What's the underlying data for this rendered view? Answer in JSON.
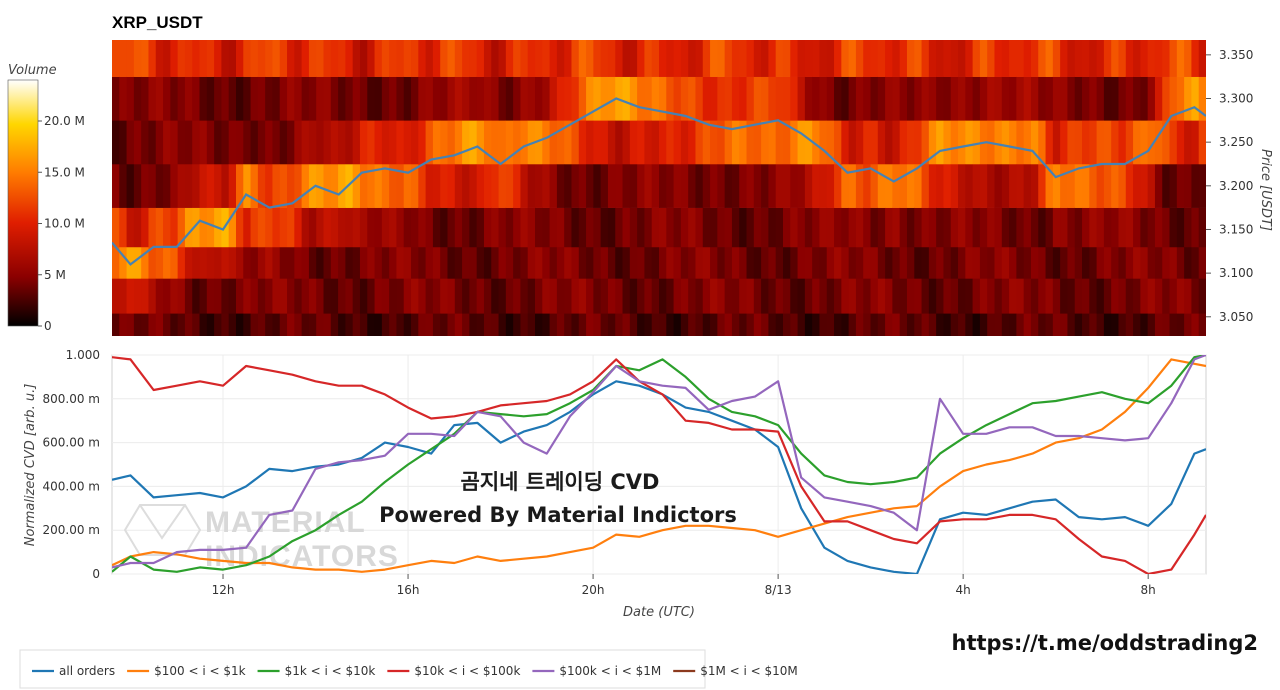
{
  "chart_data": [
    {
      "type": "heatmap",
      "title": "XRP_USDT",
      "ylabel": "Price [USDT]",
      "y_ticks": [
        "3.050",
        "3.100",
        "3.150",
        "3.200",
        "3.250",
        "3.300",
        "3.350"
      ],
      "y_tick_values": [
        3.05,
        3.1,
        3.15,
        3.2,
        3.25,
        3.3,
        3.35
      ],
      "ylim": [
        3.028,
        3.367
      ],
      "xlim_hours": [
        9.6,
        33.25
      ],
      "colorbar": {
        "title": "Volume",
        "ticks": [
          "0",
          "5 M",
          "10.0 M",
          "15.0 M",
          "20.0 M"
        ],
        "tick_values": [
          0,
          5,
          10,
          15,
          20
        ],
        "range": [
          0,
          24
        ],
        "colorscale": [
          "#000000",
          "#8b0000",
          "#e01e00",
          "#ff7a00",
          "#ffd600",
          "#ffffff"
        ]
      },
      "price_bins": [
        3.028,
        3.054,
        3.094,
        3.13,
        3.175,
        3.225,
        3.275,
        3.325,
        3.367
      ],
      "price_series": {
        "name": "price",
        "color": "#4682b4",
        "x_hours": [
          9.6,
          10.0,
          10.5,
          11.0,
          11.5,
          12.0,
          12.5,
          13.0,
          13.5,
          14.0,
          14.5,
          15.0,
          15.5,
          16.0,
          16.5,
          17.0,
          17.5,
          18.0,
          18.5,
          19.0,
          19.5,
          20.0,
          20.5,
          21.0,
          21.5,
          22.0,
          22.5,
          23.0,
          23.5,
          24.0,
          24.5,
          25.0,
          25.5,
          26.0,
          26.5,
          27.0,
          27.5,
          28.0,
          28.5,
          29.0,
          29.5,
          30.0,
          30.5,
          31.0,
          31.5,
          32.0,
          32.5,
          33.0,
          33.25
        ],
        "y": [
          3.135,
          3.11,
          3.13,
          3.13,
          3.16,
          3.15,
          3.19,
          3.175,
          3.18,
          3.2,
          3.19,
          3.215,
          3.22,
          3.215,
          3.23,
          3.235,
          3.245,
          3.225,
          3.245,
          3.255,
          3.27,
          3.285,
          3.3,
          3.29,
          3.285,
          3.28,
          3.27,
          3.265,
          3.27,
          3.275,
          3.26,
          3.24,
          3.215,
          3.22,
          3.205,
          3.22,
          3.24,
          3.245,
          3.25,
          3.245,
          3.24,
          3.21,
          3.22,
          3.225,
          3.225,
          3.24,
          3.28,
          3.29,
          3.28
        ]
      }
    },
    {
      "type": "line",
      "xlabel": "Date (UTC)",
      "ylabel": "Normalized CVD [arb. u.]",
      "x_ticks": [
        "12h",
        "16h",
        "20h",
        "8/13",
        "4h",
        "8h"
      ],
      "x_tick_values": [
        12,
        16,
        20,
        24,
        28,
        32
      ],
      "y_ticks": [
        "0",
        "200.00 m",
        "400.00 m",
        "600.00 m",
        "800.00 m",
        "1.000"
      ],
      "y_tick_values": [
        0,
        0.2,
        0.4,
        0.6,
        0.8,
        1.0
      ],
      "ylim": [
        0,
        1.0
      ],
      "x_hours": [
        9.6,
        10.0,
        10.5,
        11.0,
        11.5,
        12.0,
        12.5,
        13.0,
        13.5,
        14.0,
        14.5,
        15.0,
        15.5,
        16.0,
        16.5,
        17.0,
        17.5,
        18.0,
        18.5,
        19.0,
        19.5,
        20.0,
        20.5,
        21.0,
        21.5,
        22.0,
        22.5,
        23.0,
        23.5,
        24.0,
        24.5,
        25.0,
        25.5,
        26.0,
        26.5,
        27.0,
        27.5,
        28.0,
        28.5,
        29.0,
        29.5,
        30.0,
        30.5,
        31.0,
        31.5,
        32.0,
        32.5,
        33.0,
        33.25
      ],
      "series": [
        {
          "name": "all orders",
          "color": "#1f77b4",
          "values": [
            0.43,
            0.45,
            0.35,
            0.36,
            0.37,
            0.35,
            0.4,
            0.48,
            0.47,
            0.49,
            0.5,
            0.53,
            0.6,
            0.58,
            0.55,
            0.68,
            0.69,
            0.6,
            0.65,
            0.68,
            0.74,
            0.82,
            0.88,
            0.86,
            0.82,
            0.76,
            0.74,
            0.7,
            0.66,
            0.58,
            0.3,
            0.12,
            0.06,
            0.03,
            0.01,
            0.0,
            0.25,
            0.28,
            0.27,
            0.3,
            0.33,
            0.34,
            0.26,
            0.25,
            0.26,
            0.22,
            0.32,
            0.55,
            0.57
          ]
        },
        {
          "name": "$100 < i < $1k",
          "color": "#ff7f0e",
          "values": [
            0.04,
            0.08,
            0.1,
            0.09,
            0.07,
            0.06,
            0.05,
            0.05,
            0.03,
            0.02,
            0.02,
            0.01,
            0.02,
            0.04,
            0.06,
            0.05,
            0.08,
            0.06,
            0.07,
            0.08,
            0.1,
            0.12,
            0.18,
            0.17,
            0.2,
            0.22,
            0.22,
            0.21,
            0.2,
            0.17,
            0.2,
            0.23,
            0.26,
            0.28,
            0.3,
            0.31,
            0.4,
            0.47,
            0.5,
            0.52,
            0.55,
            0.6,
            0.62,
            0.66,
            0.74,
            0.85,
            0.98,
            0.96,
            0.95
          ]
        },
        {
          "name": "$1k < i < $10k",
          "color": "#2ca02c",
          "values": [
            0.01,
            0.08,
            0.02,
            0.01,
            0.03,
            0.02,
            0.04,
            0.08,
            0.15,
            0.2,
            0.27,
            0.33,
            0.42,
            0.5,
            0.57,
            0.64,
            0.74,
            0.73,
            0.72,
            0.73,
            0.78,
            0.84,
            0.95,
            0.93,
            0.98,
            0.9,
            0.8,
            0.74,
            0.72,
            0.68,
            0.55,
            0.45,
            0.42,
            0.41,
            0.42,
            0.44,
            0.55,
            0.62,
            0.68,
            0.73,
            0.78,
            0.79,
            0.81,
            0.83,
            0.8,
            0.78,
            0.86,
            0.99,
            1.0
          ]
        },
        {
          "name": "$10k < i < $100k",
          "color": "#d62728",
          "values": [
            0.99,
            0.98,
            0.84,
            0.86,
            0.88,
            0.86,
            0.95,
            0.93,
            0.91,
            0.88,
            0.86,
            0.86,
            0.82,
            0.76,
            0.71,
            0.72,
            0.74,
            0.77,
            0.78,
            0.79,
            0.82,
            0.88,
            0.98,
            0.88,
            0.82,
            0.7,
            0.69,
            0.66,
            0.66,
            0.65,
            0.4,
            0.24,
            0.24,
            0.2,
            0.16,
            0.14,
            0.24,
            0.25,
            0.25,
            0.27,
            0.27,
            0.25,
            0.16,
            0.08,
            0.06,
            0.0,
            0.02,
            0.18,
            0.27
          ]
        },
        {
          "name": "$100k < i < $1M",
          "color": "#9467bd",
          "values": [
            0.03,
            0.05,
            0.05,
            0.1,
            0.11,
            0.11,
            0.12,
            0.27,
            0.29,
            0.48,
            0.51,
            0.52,
            0.54,
            0.64,
            0.64,
            0.63,
            0.74,
            0.72,
            0.6,
            0.55,
            0.72,
            0.83,
            0.95,
            0.88,
            0.86,
            0.85,
            0.75,
            0.79,
            0.81,
            0.88,
            0.44,
            0.35,
            0.33,
            0.31,
            0.28,
            0.2,
            0.8,
            0.64,
            0.64,
            0.67,
            0.67,
            0.63,
            0.63,
            0.62,
            0.61,
            0.62,
            0.78,
            0.98,
            1.0
          ]
        }
      ]
    }
  ],
  "legend": {
    "items": [
      {
        "name": "all orders",
        "color": "#1f77b4"
      },
      {
        "name": "$100 < i < $1k",
        "color": "#ff7f0e"
      },
      {
        "name": "$1k < i < $10k",
        "color": "#2ca02c"
      },
      {
        "name": "$10k < i < $100k",
        "color": "#d62728"
      },
      {
        "name": "$100k < i < $1M",
        "color": "#9467bd"
      },
      {
        "name": "$1M < i < $10M",
        "color": "#8c3a1e"
      }
    ]
  },
  "watermark": {
    "line1": "곰지네 트레이딩 CVD",
    "line2": "Powered By Material Indictors",
    "logo_line1": "MATERIAL",
    "logo_line2": "INDICATORS"
  },
  "link_text": "https://t.me/oddstrading2"
}
